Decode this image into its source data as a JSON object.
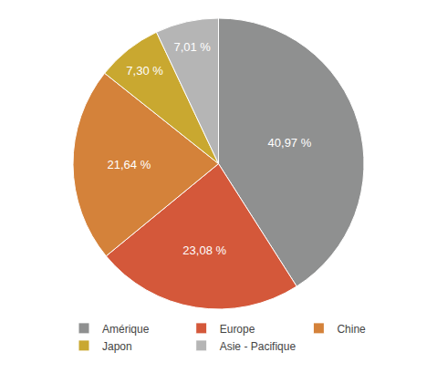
{
  "chart_data": {
    "type": "pie",
    "categories": [
      "Amérique",
      "Europe",
      "Chine",
      "Japon",
      "Asie - Pacifique"
    ],
    "values": [
      40.97,
      23.08,
      21.64,
      7.3,
      7.01
    ],
    "value_labels": [
      "40,97 %",
      "23,08 %",
      "21,64 %",
      "7,30 %",
      "7,01 %"
    ],
    "colors": [
      "#8f9090",
      "#d4583a",
      "#d4823a",
      "#c9a830",
      "#b5b5b5"
    ],
    "data_labels": true,
    "legend": "bottom"
  }
}
